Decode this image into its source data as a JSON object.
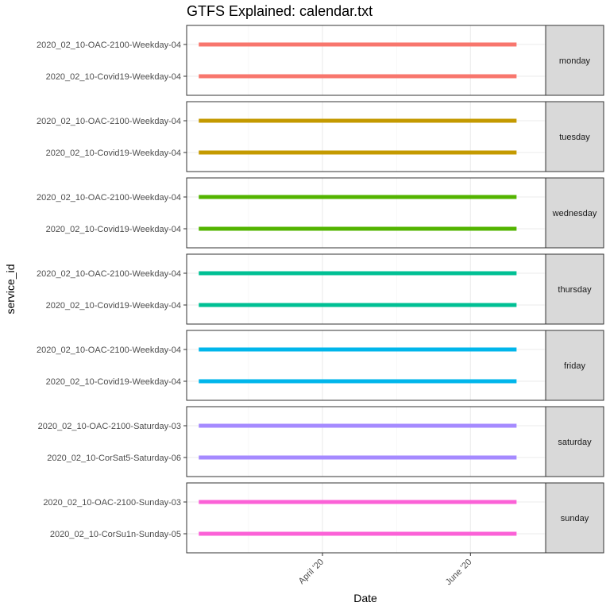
{
  "chart_data": {
    "type": "line",
    "title": "GTFS Explained: calendar.txt",
    "xlabel": "Date",
    "ylabel": "service_id",
    "x_type": "date",
    "x_ticks": [
      {
        "value": "2020-04-01",
        "label": "April '20"
      },
      {
        "value": "2020-06-01",
        "label": "June '20"
      }
    ],
    "xlim": [
      "2020-02-05",
      "2020-07-02"
    ],
    "grid": true,
    "legend": "none",
    "facets": [
      {
        "label": "monday",
        "color": "#F8766D",
        "series": [
          {
            "service_id": "2020_02_10-OAC-2100-Weekday-04",
            "start": "2020-02-10",
            "end": "2020-06-20"
          },
          {
            "service_id": "2020_02_10-Covid19-Weekday-04",
            "start": "2020-02-10",
            "end": "2020-06-20"
          }
        ]
      },
      {
        "label": "tuesday",
        "color": "#C49A00",
        "series": [
          {
            "service_id": "2020_02_10-OAC-2100-Weekday-04",
            "start": "2020-02-10",
            "end": "2020-06-20"
          },
          {
            "service_id": "2020_02_10-Covid19-Weekday-04",
            "start": "2020-02-10",
            "end": "2020-06-20"
          }
        ]
      },
      {
        "label": "wednesday",
        "color": "#53B400",
        "series": [
          {
            "service_id": "2020_02_10-OAC-2100-Weekday-04",
            "start": "2020-02-10",
            "end": "2020-06-20"
          },
          {
            "service_id": "2020_02_10-Covid19-Weekday-04",
            "start": "2020-02-10",
            "end": "2020-06-20"
          }
        ]
      },
      {
        "label": "thursday",
        "color": "#00C094",
        "series": [
          {
            "service_id": "2020_02_10-OAC-2100-Weekday-04",
            "start": "2020-02-10",
            "end": "2020-06-20"
          },
          {
            "service_id": "2020_02_10-Covid19-Weekday-04",
            "start": "2020-02-10",
            "end": "2020-06-20"
          }
        ]
      },
      {
        "label": "friday",
        "color": "#00B6EB",
        "series": [
          {
            "service_id": "2020_02_10-OAC-2100-Weekday-04",
            "start": "2020-02-10",
            "end": "2020-06-20"
          },
          {
            "service_id": "2020_02_10-Covid19-Weekday-04",
            "start": "2020-02-10",
            "end": "2020-06-20"
          }
        ]
      },
      {
        "label": "saturday",
        "color": "#A58AFF",
        "series": [
          {
            "service_id": "2020_02_10-OAC-2100-Saturday-03",
            "start": "2020-02-10",
            "end": "2020-06-20"
          },
          {
            "service_id": "2020_02_10-CorSat5-Saturday-06",
            "start": "2020-02-10",
            "end": "2020-06-20"
          }
        ]
      },
      {
        "label": "sunday",
        "color": "#FB61D7",
        "series": [
          {
            "service_id": "2020_02_10-OAC-2100-Sunday-03",
            "start": "2020-02-10",
            "end": "2020-06-20"
          },
          {
            "service_id": "2020_02_10-CorSu1n-Sunday-05",
            "start": "2020-02-10",
            "end": "2020-06-20"
          }
        ]
      }
    ]
  }
}
